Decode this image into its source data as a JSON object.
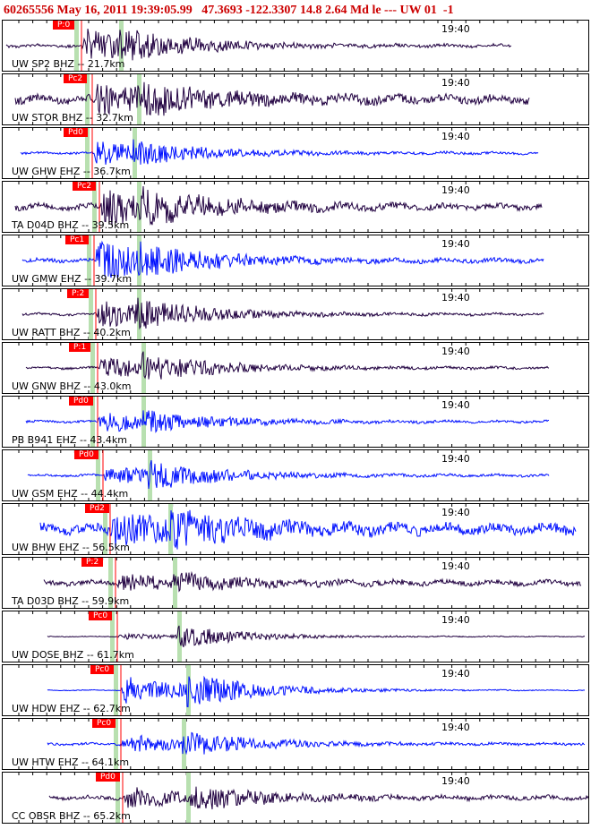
{
  "header": {
    "event_id": "60265556",
    "date_time": "May 16, 2011 19:39:05.99",
    "location": "47.3693 -122.3307",
    "depth": "14.8",
    "magnitude": "2.64 Md le",
    "dashes": "---",
    "network": "UW 01",
    "version": "-1"
  },
  "tick_time": "19:40",
  "panels": [
    {
      "station": "UW SP2 BHZ -- 21.7km",
      "pick": "P:0",
      "color": "#200040"
    },
    {
      "station": "UW STOR BHZ -- 32.7km",
      "pick": "Pc2",
      "color": "#200040"
    },
    {
      "station": "UW GHW EHZ -- 36.7km",
      "pick": "Pd0",
      "color": "#0010ff"
    },
    {
      "station": "TA D04D BHZ -- 39.5km",
      "pick": "Pc2",
      "color": "#200040"
    },
    {
      "station": "UW GMW EHZ -- 39.7km",
      "pick": "Pc1",
      "color": "#0010ff"
    },
    {
      "station": "UW RATT BHZ -- 40.2km",
      "pick": "P:2",
      "color": "#200040"
    },
    {
      "station": "UW GNW BHZ -- 43.0km",
      "pick": "P:1",
      "color": "#200040"
    },
    {
      "station": "PB B941 EHZ -- 43.4km",
      "pick": "Pd0",
      "color": "#0010ff"
    },
    {
      "station": "UW GSM EHZ -- 44.4km",
      "pick": "Pd0",
      "color": "#0010ff"
    },
    {
      "station": "UW BHW EHZ -- 56.5km",
      "pick": "Pd2",
      "color": "#0010ff"
    },
    {
      "station": "TA D03D BHZ -- 59.9km",
      "pick": "P:2",
      "color": "#200040"
    },
    {
      "station": "UW DOSE BHZ -- 61.7km",
      "pick": "Pc0",
      "color": "#200040"
    },
    {
      "station": "UW HDW EHZ -- 62.7km",
      "pick": "Pc0",
      "color": "#0010ff"
    },
    {
      "station": "UW HTW EHZ -- 64.1km",
      "pick": "Pc0",
      "color": "#0010ff"
    },
    {
      "station": "CC OBSR BHZ -- 65.2km",
      "pick": "Pd0",
      "color": "#200040"
    }
  ]
}
